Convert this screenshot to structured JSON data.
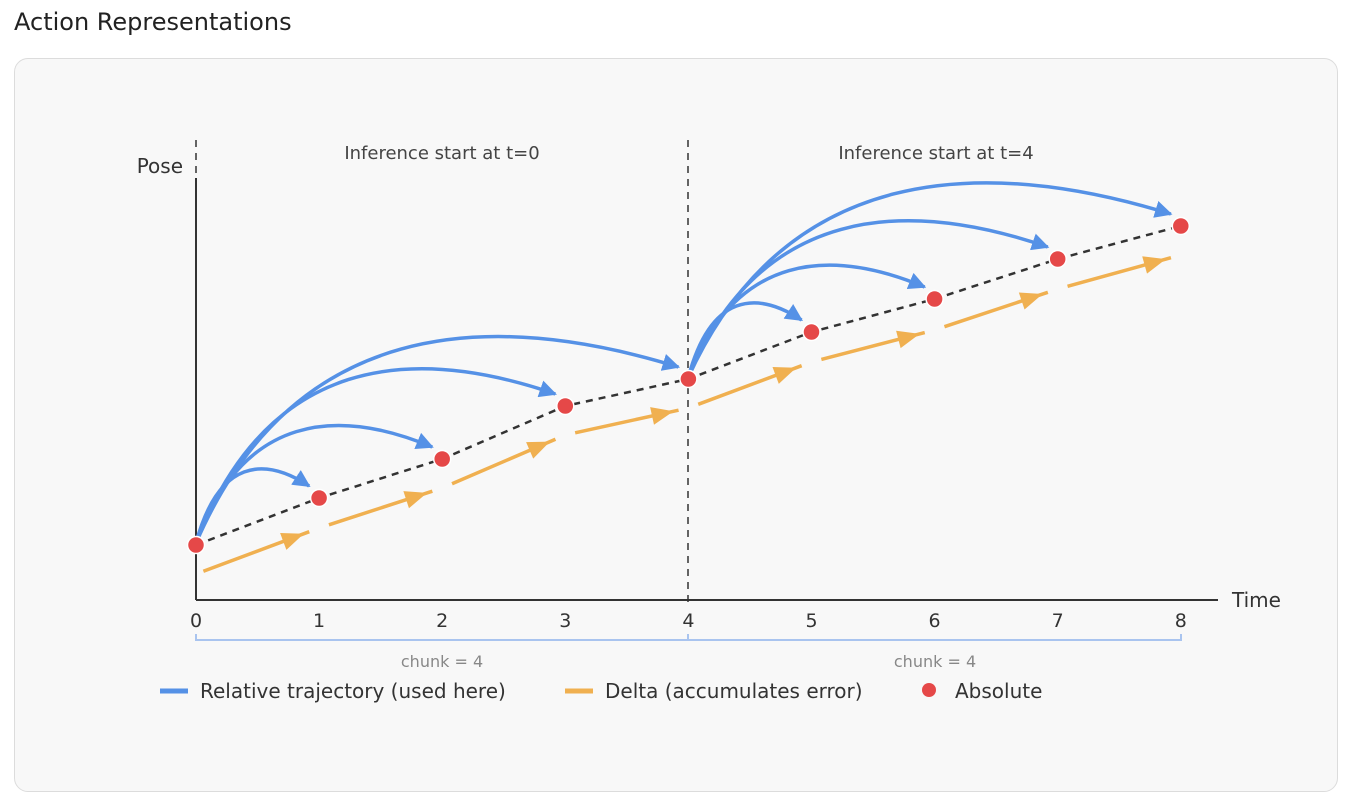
{
  "title": "Action Representations",
  "chart_data": {
    "type": "diagram",
    "ylabel": "Pose",
    "xlabel": "Time",
    "x_ticks": [
      "0",
      "1",
      "2",
      "3",
      "4",
      "5",
      "6",
      "7",
      "8"
    ],
    "annotations": [
      "Inference start at t=0",
      "Inference start at t=4"
    ],
    "chunk_labels": [
      "chunk = 4",
      "chunk = 4"
    ],
    "inference_starts": [
      0,
      4
    ],
    "absolute_pose": [
      0.0,
      0.47,
      0.86,
      1.39,
      1.66,
      2.13,
      2.46,
      2.86,
      3.19
    ],
    "delta_pose": [
      -0.29,
      0.17,
      0.57,
      1.1,
      1.37,
      1.83,
      2.15,
      2.56,
      2.9
    ],
    "legend": [
      {
        "label": "Relative trajectory (used here)",
        "color": "#5591e6"
      },
      {
        "label": "Delta (accumulates error)",
        "color": "#f0b050"
      },
      {
        "label": "Absolute",
        "color": "#e54848"
      }
    ]
  }
}
